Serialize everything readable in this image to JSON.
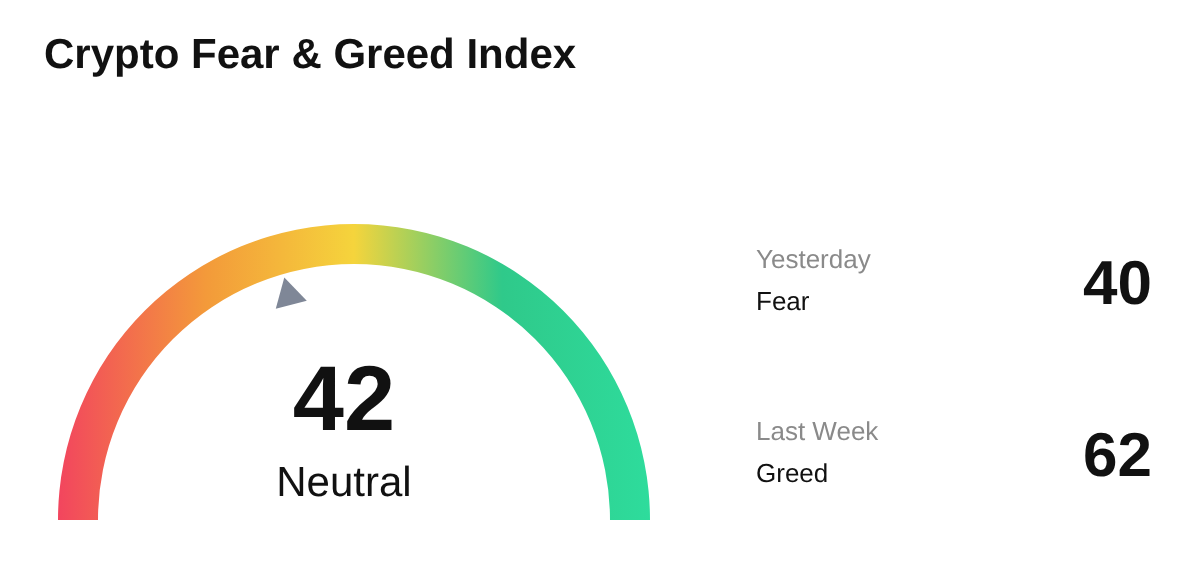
{
  "chart_data": [
    {
      "type": "other",
      "title": "Crypto Fear & Greed Index",
      "categories": [
        "Neutral"
      ],
      "values": [
        42
      ],
      "data_labels": true
    },
    {
      "type": "other",
      "categories": [
        "Fear",
        "Greed"
      ],
      "values": [
        40,
        62
      ],
      "annotations": [
        "Yesterday",
        "Last Week"
      ],
      "data_labels": true
    }
  ]
}
